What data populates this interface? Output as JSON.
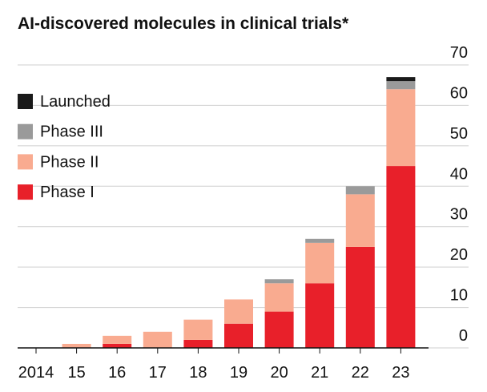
{
  "chart_data": {
    "type": "stacked-bar",
    "title": "AI-discovered molecules in clinical trials*",
    "categories": [
      "2014",
      "15",
      "16",
      "17",
      "18",
      "19",
      "20",
      "21",
      "22",
      "23"
    ],
    "series": [
      {
        "name": "Phase I",
        "color": "#e8202a",
        "values": [
          0,
          0,
          1,
          0,
          2,
          6,
          9,
          16,
          25,
          45
        ]
      },
      {
        "name": "Phase II",
        "color": "#f9ab90",
        "values": [
          0,
          1,
          2,
          4,
          5,
          6,
          7,
          10,
          13,
          19
        ]
      },
      {
        "name": "Phase III",
        "color": "#9a9a9a",
        "values": [
          0,
          0,
          0,
          0,
          0,
          0,
          1,
          1,
          2,
          2
        ]
      },
      {
        "name": "Launched",
        "color": "#1a1a1a",
        "values": [
          0,
          0,
          0,
          0,
          0,
          0,
          0,
          0,
          0,
          1
        ]
      }
    ],
    "ylim": [
      0,
      70
    ],
    "yticks": [
      0,
      10,
      20,
      30,
      40,
      50,
      60,
      70
    ],
    "grid": true,
    "legend": "top-left"
  }
}
